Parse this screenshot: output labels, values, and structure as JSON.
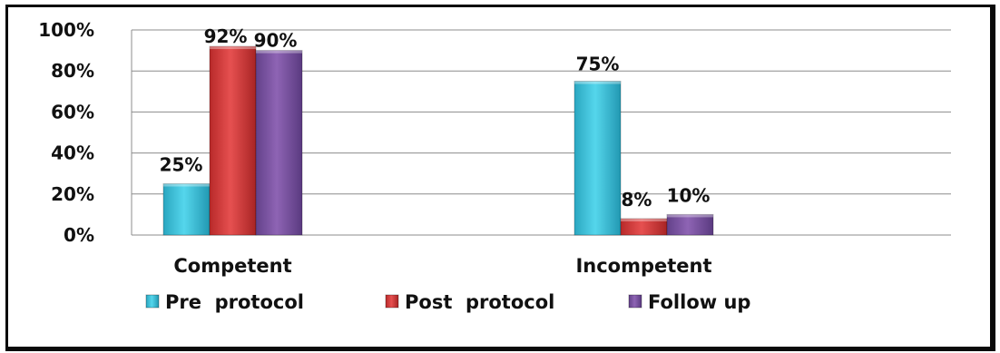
{
  "chart_data": {
    "type": "bar",
    "categories": [
      "Competent",
      "Incompetent"
    ],
    "series": [
      {
        "name": "Pre  protocol",
        "values": [
          25,
          75
        ],
        "labels": [
          "25%",
          "75%"
        ],
        "color": "#3cc4dc"
      },
      {
        "name": "Post  protocol",
        "values": [
          92,
          8
        ],
        "labels": [
          "92%",
          "8%"
        ],
        "color": "#d63a3a"
      },
      {
        "name": "Follow up",
        "values": [
          90,
          10
        ],
        "labels": [
          "90%",
          "10%"
        ],
        "color": "#7a4f9c"
      }
    ],
    "y_ticks": [
      "0%",
      "20%",
      "40%",
      "60%",
      "80%",
      "100%"
    ],
    "ylim": [
      0,
      100
    ],
    "grid": true,
    "legend_position": "bottom"
  }
}
